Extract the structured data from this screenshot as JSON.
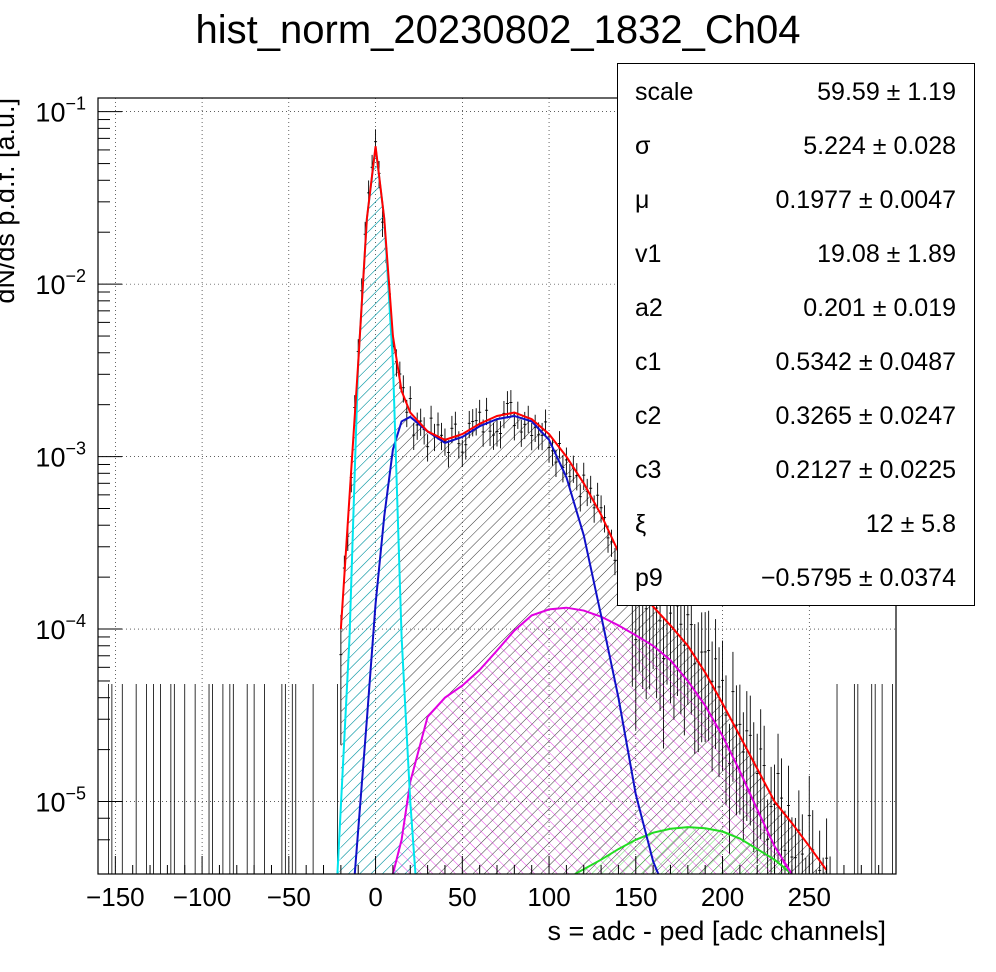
{
  "title": "hist_norm_20230802_1832_Ch04",
  "chart_data": {
    "type": "histogram with fit",
    "title": "hist_norm_20230802_1832_Ch04",
    "xlabel": "s = adc - ped [adc channels]",
    "ylabel": "dN/ds p.d.f. [a.u.]",
    "xlim": [
      -160,
      300
    ],
    "ylim": [
      3.8e-06,
      0.12
    ],
    "yscale": "log",
    "grid": true,
    "x_ticks": [
      -150,
      -100,
      -50,
      0,
      50,
      100,
      150,
      200,
      250
    ],
    "y_ticks": [
      {
        "value": 1e-05,
        "base": "10",
        "exp": "−5"
      },
      {
        "value": 0.0001,
        "base": "10",
        "exp": "−4"
      },
      {
        "value": 0.001,
        "base": "10",
        "exp": "−3"
      },
      {
        "value": 0.01,
        "base": "10",
        "exp": "−2"
      },
      {
        "value": 0.1,
        "base": "10",
        "exp": "−1"
      }
    ],
    "series": [
      {
        "role": "total-fit",
        "color": "#ff0000",
        "x": [
          -20,
          -10,
          -5,
          0,
          5,
          10,
          15,
          20,
          30,
          40,
          50,
          60,
          70,
          80,
          90,
          100,
          110,
          120,
          130,
          140,
          150,
          160,
          170,
          180,
          190,
          200,
          210,
          220,
          230,
          240,
          250,
          260
        ],
        "y": [
          0.0001,
          0.0035,
          0.024,
          0.063,
          0.024,
          0.005,
          0.0024,
          0.0018,
          0.0014,
          0.00125,
          0.00135,
          0.00155,
          0.00172,
          0.0018,
          0.00165,
          0.00135,
          0.001,
          0.0007,
          0.00046,
          0.00028,
          0.00018,
          0.000135,
          0.000105,
          8e-05,
          5.6e-05,
          3.7e-05,
          2.4e-05,
          1.55e-05,
          1e-05,
          7.5e-06,
          5.5e-06,
          4e-06
        ]
      },
      {
        "role": "pedestal",
        "color": "#00e5ee",
        "x": [
          -22,
          -15,
          -10,
          -5,
          0,
          5,
          10,
          15,
          20,
          23
        ],
        "y": [
          3.8e-06,
          9e-05,
          0.0035,
          0.024,
          0.062,
          0.024,
          0.0035,
          9e-05,
          1e-05,
          3.8e-06
        ]
      },
      {
        "role": "1-pe",
        "color": "#1010c8",
        "x": [
          -12,
          -5,
          0,
          5,
          10,
          15,
          20,
          30,
          40,
          50,
          60,
          70,
          80,
          90,
          100,
          110,
          120,
          130,
          140,
          150,
          160,
          163
        ],
        "y": [
          3.8e-06,
          3e-05,
          0.00014,
          0.00045,
          0.0011,
          0.0016,
          0.0017,
          0.0014,
          0.0012,
          0.0013,
          0.0015,
          0.00165,
          0.00172,
          0.0016,
          0.00125,
          0.00076,
          0.00035,
          0.00012,
          4e-05,
          1.1e-05,
          4.5e-06,
          3.8e-06
        ]
      },
      {
        "role": "2-pe",
        "color": "#e000e0",
        "x": [
          10,
          15,
          20,
          30,
          40,
          50,
          60,
          70,
          80,
          90,
          100,
          110,
          120,
          130,
          140,
          150,
          160,
          170,
          180,
          190,
          200,
          210,
          220,
          230,
          240,
          235
        ],
        "y": [
          3.8e-06,
          6e-06,
          1.3e-05,
          3.1e-05,
          4e-05,
          4.7e-05,
          5.8e-05,
          7.5e-05,
          9.8e-05,
          0.00012,
          0.00013,
          0.000133,
          0.000128,
          0.000118,
          0.000105,
          9.2e-05,
          8e-05,
          6.6e-05,
          5e-05,
          3.6e-05,
          2.4e-05,
          1.5e-05,
          9e-06,
          5.5e-06,
          3.8e-06,
          4.5e-06
        ]
      },
      {
        "role": "3-pe",
        "color": "#22dd22",
        "x": [
          115,
          130,
          140,
          150,
          160,
          170,
          180,
          190,
          200,
          210,
          220,
          230,
          240
        ],
        "y": [
          3.8e-06,
          4.6e-06,
          5.3e-06,
          6e-06,
          6.6e-06,
          6.95e-06,
          7.1e-06,
          7e-06,
          6.7e-06,
          6.1e-06,
          5.3e-06,
          4.6e-06,
          3.8e-06
        ]
      }
    ]
  },
  "stats": [
    {
      "name": "scale",
      "value": "59.59 ± 1.19"
    },
    {
      "name": "σ",
      "value": "5.224 ± 0.028"
    },
    {
      "name": "μ",
      "value": "0.1977 ± 0.0047"
    },
    {
      "name": "v1",
      "value": "19.08 ± 1.89"
    },
    {
      "name": "a2",
      "value": "0.201 ± 0.019"
    },
    {
      "name": "c1",
      "value": "0.5342 ± 0.0487"
    },
    {
      "name": "c2",
      "value": "0.3265 ± 0.0247"
    },
    {
      "name": "c3",
      "value": "0.2127 ± 0.0225"
    },
    {
      "name": "ξ",
      "value": "12 ± 5.8"
    },
    {
      "name": "p9",
      "value": "−0.5795 ± 0.0374"
    }
  ]
}
